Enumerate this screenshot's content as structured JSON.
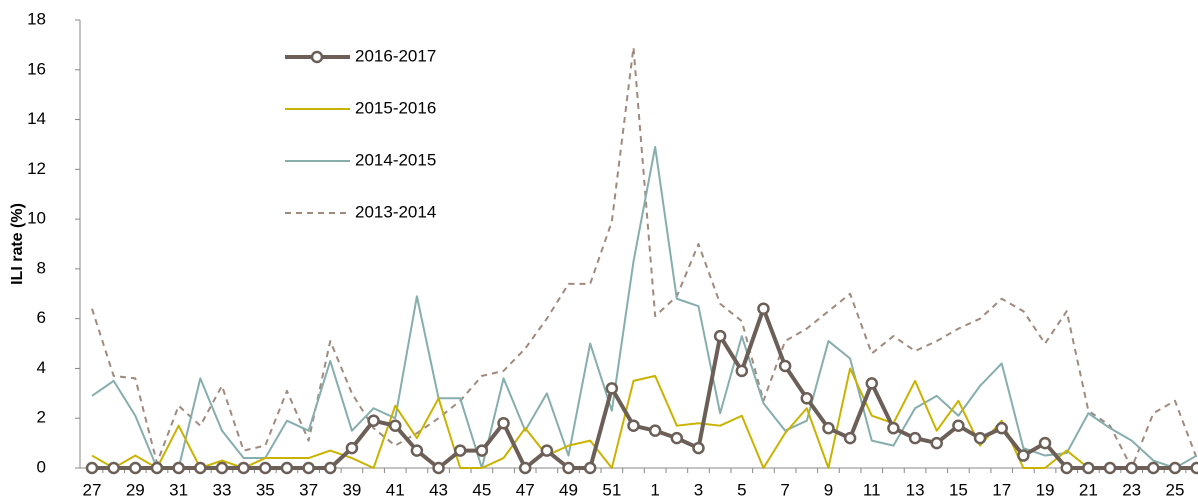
{
  "chart_data": {
    "type": "line",
    "y_label": "ILI rate (%)",
    "categories": [
      "27",
      null,
      "29",
      null,
      "31",
      null,
      "33",
      null,
      "35",
      null,
      "37",
      null,
      "39",
      null,
      "41",
      null,
      "43",
      null,
      "45",
      null,
      "47",
      null,
      "49",
      null,
      "51",
      null,
      "1",
      null,
      "3",
      null,
      "5",
      null,
      "7",
      null,
      "9",
      null,
      "11",
      null,
      "13",
      null,
      "15",
      null,
      "17",
      null,
      "19",
      null,
      "21",
      null,
      "23",
      null,
      "25",
      null
    ],
    "ylim": [
      0,
      18
    ],
    "yticks": [
      0,
      2,
      4,
      6,
      8,
      10,
      12,
      14,
      16,
      18
    ],
    "legend_position": "upper-left",
    "series": [
      {
        "name": "2016-2017",
        "color": "#6b5f58",
        "line_style": "solid",
        "line_width": 4,
        "marker": "circle",
        "values": [
          0,
          0,
          0,
          0,
          0,
          0,
          0,
          0,
          0,
          0,
          0,
          0,
          0.8,
          1.9,
          1.7,
          0.7,
          0,
          0.7,
          0.7,
          1.8,
          0,
          0.7,
          0,
          0,
          3.2,
          1.7,
          1.5,
          1.2,
          0.8,
          5.3,
          3.9,
          6.4,
          4.1,
          2.8,
          1.6,
          1.2,
          3.4,
          1.6,
          1.2,
          1.0,
          1.7,
          1.2,
          1.6,
          0.5,
          1.0,
          0,
          0,
          0,
          0,
          0,
          0,
          0
        ]
      },
      {
        "name": "2015-2016",
        "color": "#c9b300",
        "line_style": "solid",
        "line_width": 2,
        "marker": "none",
        "values": [
          0.5,
          0,
          0.5,
          0,
          1.7,
          0,
          0.3,
          0,
          0.4,
          0.4,
          0.4,
          0.7,
          0.4,
          0,
          2.5,
          1.2,
          2.8,
          0,
          0,
          0.4,
          1.6,
          0.5,
          0.9,
          1.1,
          0,
          3.5,
          3.7,
          1.7,
          1.8,
          1.7,
          2.1,
          0,
          1.4,
          2.4,
          0,
          4.0,
          2.1,
          1.8,
          3.5,
          1.5,
          2.7,
          0.9,
          1.9,
          0,
          0,
          0.7,
          0,
          0,
          0,
          0,
          0,
          0
        ]
      },
      {
        "name": "2014-2015",
        "color": "#86aeac",
        "line_style": "solid",
        "line_width": 2,
        "marker": "none",
        "values": [
          2.9,
          3.5,
          2.1,
          0,
          0,
          3.6,
          1.5,
          0.4,
          0.4,
          1.9,
          1.5,
          4.3,
          1.5,
          2.4,
          2.0,
          6.9,
          2.8,
          2.8,
          0,
          3.6,
          1.5,
          3.0,
          0.5,
          5.0,
          2.3,
          8.3,
          12.9,
          6.8,
          6.5,
          2.2,
          5.3,
          2.6,
          1.5,
          1.9,
          5.1,
          4.4,
          1.1,
          0.9,
          2.4,
          2.9,
          2.1,
          3.3,
          4.2,
          0.8,
          0.5,
          0.6,
          2.2,
          1.6,
          1.1,
          0.3,
          0,
          0.5
        ]
      },
      {
        "name": "2013-2014",
        "color": "#a08a7e",
        "line_style": "dashed",
        "line_width": 2,
        "marker": "none",
        "values": [
          6.4,
          3.7,
          3.6,
          0.2,
          2.5,
          1.7,
          3.3,
          0.7,
          0.9,
          3.1,
          1.1,
          5.1,
          3.0,
          1.6,
          0.9,
          1.4,
          2.0,
          2.7,
          3.7,
          3.9,
          4.8,
          6.0,
          7.4,
          7.4,
          9.9,
          16.9,
          6.1,
          6.9,
          9.0,
          6.6,
          5.9,
          2.7,
          5.1,
          5.6,
          6.3,
          7.0,
          4.6,
          5.3,
          4.7,
          5.1,
          5.6,
          6.0,
          6.8,
          6.3,
          5.0,
          6.3,
          2.3,
          1.7,
          0,
          2.2,
          2.7,
          0.4
        ]
      }
    ]
  }
}
